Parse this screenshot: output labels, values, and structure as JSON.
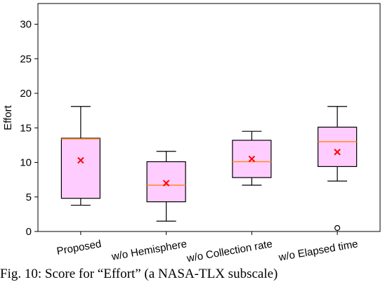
{
  "chart_data": {
    "type": "box",
    "ylabel": "Effort",
    "ylim": [
      0,
      33
    ],
    "yticks": [
      0,
      5,
      10,
      15,
      20,
      25,
      30
    ],
    "categories": [
      "Proposed",
      "w/o Hemisphere",
      "w/o Collection rate",
      "w/o Elapsed time"
    ],
    "boxes": [
      {
        "whisker_low": 3.8,
        "q1": 4.8,
        "median": 13.4,
        "q3": 13.5,
        "whisker_high": 18.1,
        "mean": 10.3,
        "outliers": []
      },
      {
        "whisker_low": 1.5,
        "q1": 4.3,
        "median": 6.7,
        "q3": 10.1,
        "whisker_high": 11.6,
        "mean": 7.0,
        "outliers": []
      },
      {
        "whisker_low": 6.7,
        "q1": 7.8,
        "median": 10.1,
        "q3": 13.2,
        "whisker_high": 14.5,
        "mean": 10.5,
        "outliers": []
      },
      {
        "whisker_low": 7.3,
        "q1": 9.4,
        "median": 13.0,
        "q3": 15.1,
        "whisker_high": 18.1,
        "mean": 11.5,
        "outliers": [
          0.2
        ]
      }
    ],
    "colors": {
      "box_fill": "#ffccff",
      "median": "#ff8c1a",
      "mean": "#ff0000",
      "line": "#000000"
    }
  },
  "caption": "Fig. 10: Score for “Effort” (a NASA-TLX subscale)"
}
